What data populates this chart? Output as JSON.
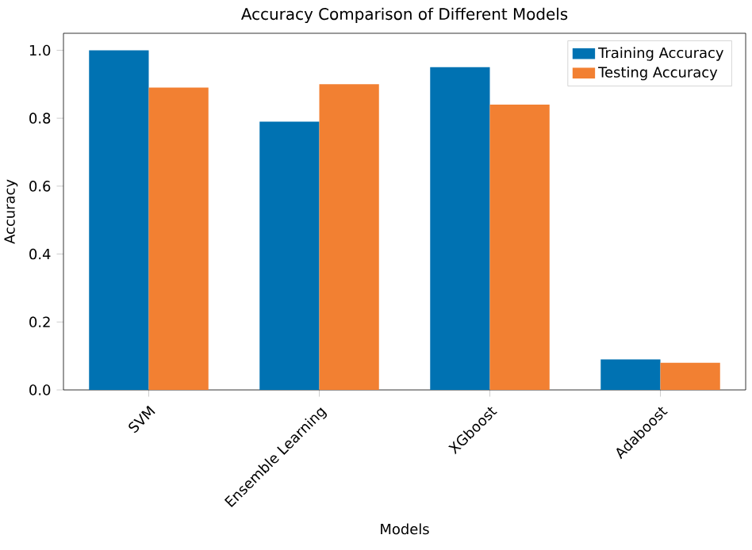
{
  "chart_data": {
    "type": "bar",
    "title": "Accuracy Comparison of Different Models",
    "xlabel": "Models",
    "ylabel": "Accuracy",
    "categories": [
      "SVM",
      "Ensemble Learning",
      "XGboost",
      "Adaboost"
    ],
    "series": [
      {
        "name": "Training Accuracy",
        "color": "#0072b2",
        "values": [
          1.0,
          0.79,
          0.95,
          0.09
        ]
      },
      {
        "name": "Testing Accuracy",
        "color": "#f28032",
        "values": [
          0.89,
          0.9,
          0.84,
          0.08
        ]
      }
    ],
    "ylim": [
      0,
      1.05
    ],
    "yticks": [
      {
        "value": 0,
        "label": "0.0"
      },
      0.2,
      0.4,
      0.6,
      0.8,
      {
        "value": 1,
        "label": "1.0"
      }
    ],
    "legend": "top right"
  }
}
